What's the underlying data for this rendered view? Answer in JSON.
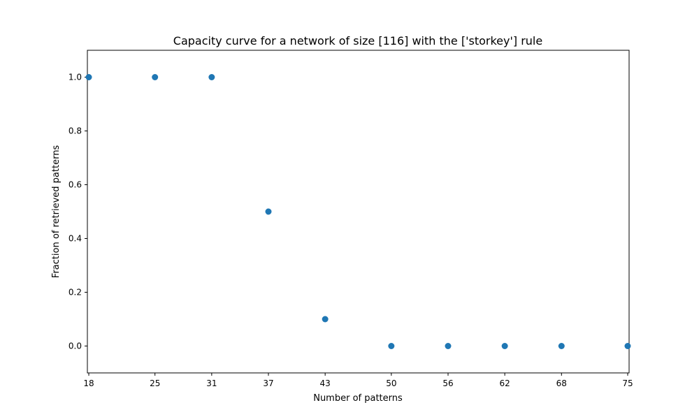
{
  "chart_data": {
    "type": "scatter",
    "title": "Capacity curve for a network of size [116] with the ['storkey'] rule",
    "xlabel": "Number of patterns",
    "ylabel": "Fraction of retrieved patterns",
    "x": [
      18,
      25,
      31,
      37,
      43,
      50,
      56,
      62,
      68,
      75
    ],
    "y": [
      1.0,
      1.0,
      1.0,
      0.5,
      0.1,
      0.0,
      0.0,
      0.0,
      0.0,
      0.0
    ],
    "xticks": [
      "18",
      "25",
      "31",
      "37",
      "43",
      "50",
      "56",
      "62",
      "68",
      "75"
    ],
    "yticks": [
      "0.0",
      "0.2",
      "0.4",
      "0.6",
      "0.8",
      "1.0"
    ],
    "xlim": [
      17.85,
      75.15
    ],
    "ylim": [
      -0.1,
      1.1
    ],
    "grid": false,
    "marker_color": "#1f77b4"
  }
}
